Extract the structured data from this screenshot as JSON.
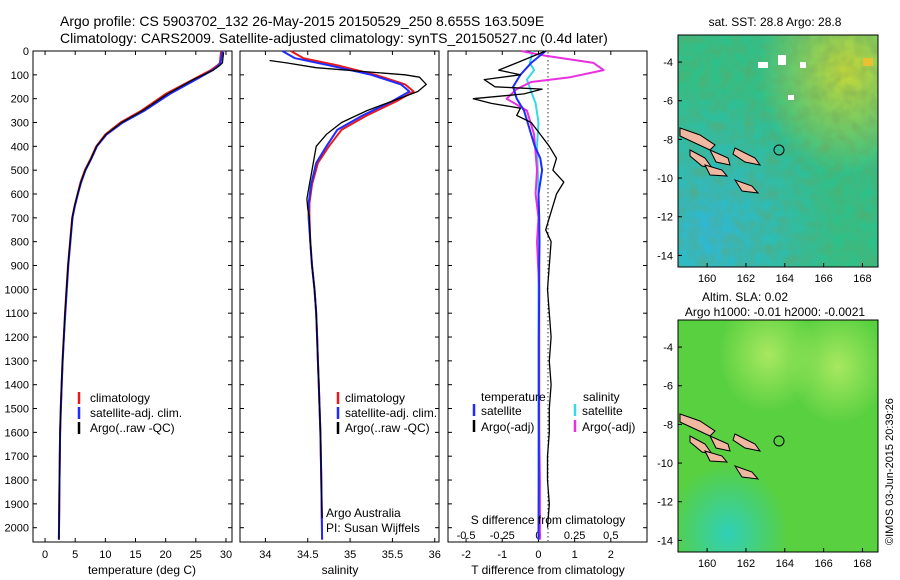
{
  "header": {
    "line1": "Argo profile: CS 5903702_132 26-May-2015 20150529_250 8.655S 163.509E",
    "line2": "Climatology: CARS2009. Satellite-adjusted climatology: synTS_20150527.nc (0.4d later)"
  },
  "credit": "©IMOS 03-Jun-2015 20:39:26",
  "depth_ticks": [
    "0",
    "100",
    "200",
    "300",
    "400",
    "500",
    "600",
    "700",
    "800",
    "900",
    "1000",
    "1100",
    "1200",
    "1300",
    "1400",
    "1500",
    "1600",
    "1700",
    "1800",
    "1900",
    "2000"
  ],
  "colors": {
    "climatology": "#e8191c",
    "satellite": "#1f2bff",
    "argo": "#000000",
    "sal_satellite": "#36d9e8",
    "sal_argo": "#e830e0"
  },
  "chart_data": [
    {
      "type": "line",
      "xlabel": "temperature (deg C)",
      "ylabel": "",
      "xlim": [
        -2,
        31
      ],
      "ylim": [
        2060,
        0
      ],
      "xticks": [
        "0",
        "5",
        "10",
        "15",
        "20",
        "25",
        "30"
      ],
      "legend": {
        "position": "lower-middle",
        "entries": [
          "climatology",
          "satellite-adj. clim.",
          "Argo(..raw -QC)"
        ]
      },
      "series": [
        {
          "name": "climatology",
          "x": [
            29.2,
            29.0,
            28.6,
            27.5,
            24.5,
            20.0,
            16.0,
            12.5,
            10.0,
            8.5,
            7.6,
            6.6,
            5.9,
            5.4,
            4.9,
            4.5,
            4.15,
            3.8,
            3.55,
            3.3,
            3.1,
            2.9,
            2.75,
            2.6,
            2.5,
            2.4,
            2.3
          ],
          "y": [
            0,
            50,
            60,
            80,
            120,
            180,
            250,
            300,
            350,
            400,
            450,
            500,
            550,
            600,
            650,
            700,
            800,
            900,
            1000,
            1100,
            1200,
            1300,
            1400,
            1500,
            1600,
            1800,
            2050
          ]
        },
        {
          "name": "satellite-adj. clim.",
          "x": [
            29.4,
            29.1,
            28.8,
            27.8,
            25.0,
            20.7,
            16.5,
            12.9,
            10.2,
            8.6,
            7.7,
            6.7,
            6.0,
            5.45,
            4.95,
            4.55,
            4.2,
            3.85,
            3.6,
            3.35,
            3.12,
            2.92,
            2.76,
            2.62,
            2.5,
            2.4,
            2.3
          ],
          "y": [
            0,
            50,
            60,
            80,
            120,
            180,
            250,
            300,
            350,
            400,
            450,
            500,
            550,
            600,
            650,
            700,
            800,
            900,
            1000,
            1100,
            1200,
            1300,
            1400,
            1500,
            1600,
            1800,
            2050
          ]
        },
        {
          "name": "Argo(..raw -QC)",
          "x": [
            29.6,
            29.4,
            29.0,
            27.9,
            24.6,
            20.3,
            16.2,
            12.7,
            10.1,
            8.55,
            7.65,
            6.65,
            5.95,
            5.4,
            4.9,
            4.5,
            4.15,
            3.8,
            3.55,
            3.3,
            3.1,
            2.9,
            2.75,
            2.6,
            2.5,
            2.4,
            2.3
          ],
          "y": [
            5,
            50,
            60,
            80,
            120,
            180,
            250,
            300,
            350,
            400,
            450,
            500,
            550,
            600,
            650,
            700,
            800,
            900,
            1000,
            1100,
            1200,
            1300,
            1400,
            1500,
            1600,
            1800,
            2050
          ]
        }
      ]
    },
    {
      "type": "line",
      "xlabel": "salinity",
      "xlim": [
        33.7,
        36.05
      ],
      "ylim": [
        2060,
        0
      ],
      "xticks": [
        "34",
        "34.5",
        "35",
        "35.5",
        "36"
      ],
      "legend": {
        "position": "lower-middle",
        "entries": [
          "climatology",
          "satellite-adj. clim.",
          "Argo(..raw -QC)"
        ]
      },
      "annotations": [
        "Argo Australia",
        "PI: Susan Wijffels"
      ],
      "series": [
        {
          "name": "climatology",
          "x": [
            34.3,
            34.45,
            34.85,
            35.3,
            35.65,
            35.75,
            35.55,
            35.2,
            34.9,
            34.75,
            34.62,
            34.55,
            34.52,
            34.52,
            34.53,
            34.55,
            34.58,
            34.6,
            34.61,
            34.62,
            34.63,
            34.64,
            34.65,
            34.66,
            34.67
          ],
          "y": [
            0,
            30,
            60,
            100,
            140,
            170,
            210,
            270,
            330,
            400,
            470,
            560,
            640,
            700,
            800,
            900,
            1000,
            1100,
            1200,
            1300,
            1400,
            1500,
            1600,
            1800,
            2050
          ]
        },
        {
          "name": "satellite-adj. clim.",
          "x": [
            34.2,
            34.35,
            34.75,
            35.25,
            35.6,
            35.7,
            35.5,
            35.15,
            34.85,
            34.72,
            34.6,
            34.54,
            34.51,
            34.51,
            34.53,
            34.55,
            34.58,
            34.6,
            34.61,
            34.62,
            34.63,
            34.64,
            34.65,
            34.66,
            34.67
          ],
          "y": [
            0,
            30,
            60,
            100,
            140,
            170,
            210,
            270,
            330,
            400,
            470,
            560,
            640,
            700,
            800,
            900,
            1000,
            1100,
            1200,
            1300,
            1400,
            1500,
            1600,
            1800,
            2050
          ]
        },
        {
          "name": "Argo(..raw -QC)",
          "x": [
            34.05,
            34.25,
            34.6,
            35.3,
            35.65,
            35.82,
            35.9,
            35.8,
            35.5,
            35.2,
            34.9,
            34.72,
            34.6,
            34.55,
            34.52,
            34.49,
            34.5,
            34.52,
            34.53,
            34.55,
            34.58,
            34.6,
            34.61,
            34.62,
            34.63,
            34.64,
            34.65,
            34.66,
            34.67
          ],
          "y": [
            40,
            50,
            70,
            90,
            100,
            110,
            140,
            170,
            210,
            250,
            300,
            350,
            400,
            500,
            560,
            620,
            660,
            700,
            800,
            900,
            1000,
            1100,
            1200,
            1300,
            1400,
            1500,
            1600,
            1800,
            1960
          ]
        }
      ]
    },
    {
      "type": "line",
      "xlabel": "T difference from climatology",
      "x2label": "S difference from climatology",
      "xlim": [
        -2.5,
        3.0
      ],
      "ylim": [
        2060,
        0
      ],
      "xticks": [
        "-2",
        "-1",
        "0",
        "1",
        "2"
      ],
      "x2ticks": [
        "-0.5",
        "-0.25",
        "0",
        "0.25",
        "0.5"
      ],
      "legend": {
        "position": "lower-middle",
        "titles": [
          "temperature",
          "salinity"
        ],
        "entries": [
          "satellite",
          "Argo(-adj)",
          "satellite",
          "Argo(-adj)"
        ]
      },
      "series": [
        {
          "name": "satellite",
          "x": [
            0.2,
            -0.2,
            -0.5,
            -0.7,
            -0.6,
            -0.4,
            -0.3,
            -0.2,
            -0.1,
            0.05,
            0.1,
            0.05,
            0.0,
            0.02,
            0.03,
            0.02,
            0.02,
            0.01,
            0.01,
            0.01,
            0.01,
            0.0
          ],
          "y": [
            0,
            50,
            100,
            150,
            200,
            250,
            300,
            350,
            400,
            450,
            500,
            550,
            600,
            700,
            800,
            900,
            1000,
            1200,
            1400,
            1600,
            1800,
            2050
          ]
        },
        {
          "name": "Argo(-adj)",
          "x": [
            0.2,
            -0.6,
            -1.1,
            -0.5,
            -1.5,
            -1.2,
            0.1,
            -0.4,
            -1.8,
            -1.3,
            -0.5,
            -0.6,
            -0.2,
            0.05,
            0.3,
            0.5,
            0.4,
            0.7,
            0.5,
            0.4,
            0.3,
            0.2,
            0.35,
            0.3,
            0.25,
            0.3,
            0.35,
            0.3,
            0.35,
            0.3,
            0.3,
            0.25,
            0.25,
            0.3,
            0.25
          ],
          "y": [
            0,
            50,
            80,
            100,
            120,
            150,
            160,
            180,
            200,
            220,
            240,
            270,
            300,
            350,
            400,
            450,
            500,
            550,
            600,
            650,
            700,
            750,
            800,
            900,
            1000,
            1100,
            1200,
            1300,
            1400,
            1500,
            1600,
            1700,
            1800,
            1900,
            2000
          ]
        },
        {
          "name": "satellite",
          "x": [
            -0.04,
            -0.06,
            -0.03,
            -0.08,
            -0.05,
            -0.02,
            0.0,
            -0.01,
            0.0,
            0.0,
            0.0
          ],
          "y": [
            0,
            50,
            80,
            120,
            170,
            220,
            300,
            400,
            600,
            1000,
            2050
          ]
        },
        {
          "name": "Argo(-adj)",
          "x": [
            -0.12,
            0.05,
            0.38,
            0.45,
            0.22,
            -0.05,
            -0.15,
            -0.22,
            -0.08,
            -0.03,
            -0.01,
            -0.02,
            0.0,
            -0.01,
            0.005,
            0.005,
            0.005,
            0.01,
            0.01
          ],
          "y": [
            0,
            20,
            50,
            80,
            110,
            130,
            160,
            200,
            250,
            350,
            500,
            600,
            700,
            800,
            1000,
            1300,
            1600,
            1800,
            2050
          ]
        }
      ]
    },
    {
      "type": "heatmap",
      "title": "sat. SST: 28.8 Argo: 28.8",
      "xlim": [
        158.5,
        168.8
      ],
      "ylim": [
        -14.6,
        -2.6
      ],
      "xticks": [
        "160",
        "162",
        "164",
        "166",
        "168"
      ],
      "yticks": [
        "-4",
        "-6",
        "-8",
        "-10",
        "-12",
        "-14"
      ],
      "marker": {
        "lon": 163.509,
        "lat": -8.655
      }
    },
    {
      "type": "heatmap",
      "title": "Altim. SLA: 0.02",
      "subtitle": "Argo h1000: -0.01 h2000: -0.0021",
      "xlim": [
        158.5,
        168.8
      ],
      "ylim": [
        -14.6,
        -2.6
      ],
      "xticks": [
        "160",
        "162",
        "164",
        "166",
        "168"
      ],
      "yticks": [
        "-4",
        "-6",
        "-8",
        "-10",
        "-12",
        "-14"
      ],
      "marker": {
        "lon": 163.509,
        "lat": -8.655
      }
    }
  ]
}
